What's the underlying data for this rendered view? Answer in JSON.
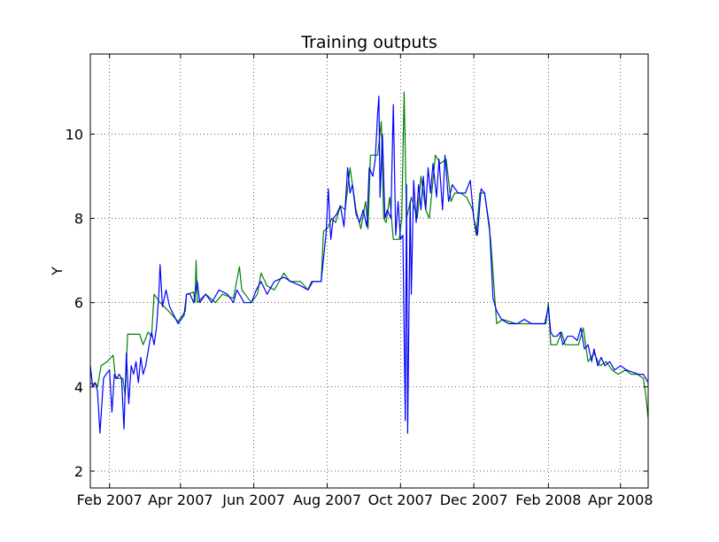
{
  "chart_data": {
    "type": "line",
    "title": "Training outputs",
    "xlabel": "",
    "ylabel": "Y",
    "grid": true,
    "x_axis_type": "date",
    "xlim": [
      "2007-01-16",
      "2008-04-24"
    ],
    "ylim": [
      1.6,
      11.9
    ],
    "x_ticks": [
      "2007-02-01",
      "2007-04-01",
      "2007-06-01",
      "2007-08-01",
      "2007-10-01",
      "2007-12-01",
      "2008-02-01",
      "2008-04-01"
    ],
    "x_tick_labels": [
      "Feb 2007",
      "Apr 2007",
      "Jun 2007",
      "Aug 2007",
      "Oct 2007",
      "Dec 2007",
      "Feb 2008",
      "Apr 2008"
    ],
    "y_ticks": [
      2,
      4,
      6,
      8,
      10
    ],
    "y_tick_labels": [
      "2",
      "4",
      "6",
      "8",
      "10"
    ],
    "series": [
      {
        "color": "#008000",
        "points": [
          [
            "2007-01-16",
            4.1
          ],
          [
            "2007-01-18",
            4.05
          ],
          [
            "2007-01-20",
            4.1
          ],
          [
            "2007-01-22",
            4.0
          ],
          [
            "2007-01-25",
            4.5
          ],
          [
            "2007-01-30",
            4.6
          ],
          [
            "2007-02-04",
            4.75
          ],
          [
            "2007-02-06",
            4.2
          ],
          [
            "2007-02-12",
            4.2
          ],
          [
            "2007-02-14",
            3.8
          ],
          [
            "2007-02-16",
            5.25
          ],
          [
            "2007-02-26",
            5.25
          ],
          [
            "2007-03-01",
            5.0
          ],
          [
            "2007-03-05",
            5.3
          ],
          [
            "2007-03-08",
            5.2
          ],
          [
            "2007-03-10",
            6.2
          ],
          [
            "2007-03-15",
            6.0
          ],
          [
            "2007-03-22",
            5.8
          ],
          [
            "2007-03-30",
            5.55
          ],
          [
            "2007-04-05",
            5.8
          ],
          [
            "2007-04-06",
            6.2
          ],
          [
            "2007-04-12",
            6.25
          ],
          [
            "2007-04-13",
            6.0
          ],
          [
            "2007-04-14",
            7.0
          ],
          [
            "2007-04-15",
            6.0
          ],
          [
            "2007-04-22",
            6.2
          ],
          [
            "2007-04-30",
            6.0
          ],
          [
            "2007-05-06",
            6.2
          ],
          [
            "2007-05-15",
            6.1
          ],
          [
            "2007-05-20",
            6.85
          ],
          [
            "2007-05-22",
            6.3
          ],
          [
            "2007-05-30",
            6.0
          ],
          [
            "2007-06-04",
            6.2
          ],
          [
            "2007-06-07",
            6.7
          ],
          [
            "2007-06-12",
            6.4
          ],
          [
            "2007-06-18",
            6.3
          ],
          [
            "2007-06-22",
            6.5
          ],
          [
            "2007-06-26",
            6.7
          ],
          [
            "2007-07-01",
            6.5
          ],
          [
            "2007-07-10",
            6.5
          ],
          [
            "2007-07-16",
            6.3
          ],
          [
            "2007-07-19",
            6.5
          ],
          [
            "2007-07-22",
            6.5
          ],
          [
            "2007-07-27",
            6.5
          ],
          [
            "2007-07-29",
            7.7
          ],
          [
            "2007-08-01",
            7.75
          ],
          [
            "2007-08-05",
            8.0
          ],
          [
            "2007-08-08",
            7.9
          ],
          [
            "2007-08-12",
            8.3
          ],
          [
            "2007-08-16",
            8.2
          ],
          [
            "2007-08-20",
            9.2
          ],
          [
            "2007-08-25",
            8.2
          ],
          [
            "2007-08-29",
            7.75
          ],
          [
            "2007-09-02",
            8.4
          ],
          [
            "2007-09-04",
            7.75
          ],
          [
            "2007-09-06",
            9.5
          ],
          [
            "2007-09-12",
            9.5
          ],
          [
            "2007-09-15",
            10.3
          ],
          [
            "2007-09-17",
            8.0
          ],
          [
            "2007-09-19",
            7.9
          ],
          [
            "2007-09-22",
            8.5
          ],
          [
            "2007-09-25",
            7.5
          ],
          [
            "2007-09-30",
            7.5
          ],
          [
            "2007-10-02",
            8.0
          ],
          [
            "2007-10-04",
            11.0
          ],
          [
            "2007-10-06",
            8.0
          ],
          [
            "2007-10-10",
            8.5
          ],
          [
            "2007-10-15",
            8.0
          ],
          [
            "2007-10-18",
            9.0
          ],
          [
            "2007-10-22",
            8.2
          ],
          [
            "2007-10-25",
            8.0
          ],
          [
            "2007-10-30",
            9.5
          ],
          [
            "2007-11-03",
            9.3
          ],
          [
            "2007-11-08",
            9.4
          ],
          [
            "2007-11-12",
            8.4
          ],
          [
            "2007-11-15",
            8.6
          ],
          [
            "2007-11-20",
            8.6
          ],
          [
            "2007-11-25",
            8.5
          ],
          [
            "2007-11-30",
            8.2
          ],
          [
            "2007-12-03",
            7.6
          ],
          [
            "2007-12-06",
            8.6
          ],
          [
            "2007-12-10",
            8.6
          ],
          [
            "2007-12-15",
            7.5
          ],
          [
            "2007-12-20",
            5.5
          ],
          [
            "2007-12-25",
            5.6
          ],
          [
            "2008-01-05",
            5.5
          ],
          [
            "2008-01-15",
            5.5
          ],
          [
            "2008-01-25",
            5.5
          ],
          [
            "2008-01-30",
            5.5
          ],
          [
            "2008-02-01",
            6.0
          ],
          [
            "2008-02-03",
            5.0
          ],
          [
            "2008-02-08",
            5.0
          ],
          [
            "2008-02-12",
            5.3
          ],
          [
            "2008-02-15",
            5.0
          ],
          [
            "2008-02-20",
            5.0
          ],
          [
            "2008-02-26",
            5.0
          ],
          [
            "2008-03-01",
            5.4
          ],
          [
            "2008-03-05",
            4.6
          ],
          [
            "2008-03-10",
            4.8
          ],
          [
            "2008-03-15",
            4.5
          ],
          [
            "2008-03-20",
            4.6
          ],
          [
            "2008-03-25",
            4.4
          ],
          [
            "2008-03-30",
            4.3
          ],
          [
            "2008-04-05",
            4.4
          ],
          [
            "2008-04-10",
            4.3
          ],
          [
            "2008-04-15",
            4.3
          ],
          [
            "2008-04-20",
            4.2
          ],
          [
            "2008-04-22",
            3.8
          ],
          [
            "2008-04-24",
            3.25
          ]
        ]
      },
      {
        "color": "#0000ff",
        "points": [
          [
            "2007-01-16",
            4.5
          ],
          [
            "2007-01-18",
            4.0
          ],
          [
            "2007-01-20",
            4.1
          ],
          [
            "2007-01-22",
            3.9
          ],
          [
            "2007-01-24",
            2.9
          ],
          [
            "2007-01-27",
            4.2
          ],
          [
            "2007-01-29",
            4.3
          ],
          [
            "2007-02-01",
            4.4
          ],
          [
            "2007-02-03",
            3.4
          ],
          [
            "2007-02-05",
            4.3
          ],
          [
            "2007-02-07",
            4.2
          ],
          [
            "2007-02-09",
            4.3
          ],
          [
            "2007-02-11",
            4.2
          ],
          [
            "2007-02-13",
            3.0
          ],
          [
            "2007-02-15",
            4.8
          ],
          [
            "2007-02-17",
            3.6
          ],
          [
            "2007-02-19",
            4.5
          ],
          [
            "2007-02-21",
            4.3
          ],
          [
            "2007-02-23",
            4.6
          ],
          [
            "2007-02-25",
            4.1
          ],
          [
            "2007-02-27",
            4.7
          ],
          [
            "2007-03-01",
            4.3
          ],
          [
            "2007-03-03",
            4.5
          ],
          [
            "2007-03-06",
            5.0
          ],
          [
            "2007-03-08",
            5.3
          ],
          [
            "2007-03-10",
            5.0
          ],
          [
            "2007-03-12",
            5.4
          ],
          [
            "2007-03-14",
            6.2
          ],
          [
            "2007-03-15",
            6.9
          ],
          [
            "2007-03-17",
            5.9
          ],
          [
            "2007-03-20",
            6.3
          ],
          [
            "2007-03-23",
            5.9
          ],
          [
            "2007-03-30",
            5.5
          ],
          [
            "2007-04-04",
            5.7
          ],
          [
            "2007-04-06",
            6.2
          ],
          [
            "2007-04-09",
            6.2
          ],
          [
            "2007-04-12",
            6.0
          ],
          [
            "2007-04-15",
            6.5
          ],
          [
            "2007-04-17",
            6.0
          ],
          [
            "2007-04-22",
            6.2
          ],
          [
            "2007-04-27",
            6.0
          ],
          [
            "2007-05-03",
            6.3
          ],
          [
            "2007-05-10",
            6.2
          ],
          [
            "2007-05-15",
            6.0
          ],
          [
            "2007-05-18",
            6.3
          ],
          [
            "2007-05-24",
            6.0
          ],
          [
            "2007-05-30",
            6.0
          ],
          [
            "2007-06-03",
            6.3
          ],
          [
            "2007-06-07",
            6.5
          ],
          [
            "2007-06-12",
            6.2
          ],
          [
            "2007-06-18",
            6.5
          ],
          [
            "2007-06-26",
            6.6
          ],
          [
            "2007-07-02",
            6.5
          ],
          [
            "2007-07-10",
            6.4
          ],
          [
            "2007-07-16",
            6.3
          ],
          [
            "2007-07-20",
            6.5
          ],
          [
            "2007-07-27",
            6.5
          ],
          [
            "2007-07-31",
            7.6
          ],
          [
            "2007-08-02",
            8.7
          ],
          [
            "2007-08-04",
            7.5
          ],
          [
            "2007-08-06",
            8.0
          ],
          [
            "2007-08-09",
            8.1
          ],
          [
            "2007-08-12",
            8.3
          ],
          [
            "2007-08-15",
            7.8
          ],
          [
            "2007-08-18",
            9.2
          ],
          [
            "2007-08-20",
            8.6
          ],
          [
            "2007-08-22",
            8.8
          ],
          [
            "2007-08-25",
            8.1
          ],
          [
            "2007-08-28",
            7.9
          ],
          [
            "2007-08-31",
            8.2
          ],
          [
            "2007-09-03",
            7.8
          ],
          [
            "2007-09-05",
            9.2
          ],
          [
            "2007-09-08",
            9.0
          ],
          [
            "2007-09-10",
            9.4
          ],
          [
            "2007-09-12",
            10.5
          ],
          [
            "2007-09-13",
            10.9
          ],
          [
            "2007-09-14",
            8.5
          ],
          [
            "2007-09-16",
            10.0
          ],
          [
            "2007-09-18",
            8.0
          ],
          [
            "2007-09-20",
            8.2
          ],
          [
            "2007-09-23",
            8.0
          ],
          [
            "2007-09-25",
            10.7
          ],
          [
            "2007-09-27",
            7.6
          ],
          [
            "2007-09-29",
            8.4
          ],
          [
            "2007-10-01",
            7.5
          ],
          [
            "2007-10-03",
            7.6
          ],
          [
            "2007-10-05",
            3.2
          ],
          [
            "2007-10-06",
            8.8
          ],
          [
            "2007-10-07",
            2.9
          ],
          [
            "2007-10-09",
            8.4
          ],
          [
            "2007-10-10",
            6.2
          ],
          [
            "2007-10-12",
            8.9
          ],
          [
            "2007-10-14",
            7.9
          ],
          [
            "2007-10-16",
            8.8
          ],
          [
            "2007-10-18",
            8.2
          ],
          [
            "2007-10-20",
            9.0
          ],
          [
            "2007-10-22",
            8.2
          ],
          [
            "2007-10-24",
            9.2
          ],
          [
            "2007-10-26",
            8.6
          ],
          [
            "2007-10-28",
            9.3
          ],
          [
            "2007-10-31",
            8.5
          ],
          [
            "2007-11-02",
            9.4
          ],
          [
            "2007-11-05",
            8.2
          ],
          [
            "2007-11-07",
            9.5
          ],
          [
            "2007-11-10",
            8.4
          ],
          [
            "2007-11-13",
            8.8
          ],
          [
            "2007-11-18",
            8.6
          ],
          [
            "2007-11-24",
            8.6
          ],
          [
            "2007-11-28",
            8.9
          ],
          [
            "2007-12-01",
            8.0
          ],
          [
            "2007-12-04",
            7.6
          ],
          [
            "2007-12-07",
            8.7
          ],
          [
            "2007-12-10",
            8.6
          ],
          [
            "2007-12-14",
            7.8
          ],
          [
            "2007-12-17",
            6.1
          ],
          [
            "2007-12-20",
            5.8
          ],
          [
            "2007-12-24",
            5.6
          ],
          [
            "2007-12-30",
            5.5
          ],
          [
            "2008-01-06",
            5.5
          ],
          [
            "2008-01-12",
            5.6
          ],
          [
            "2008-01-18",
            5.5
          ],
          [
            "2008-01-24",
            5.5
          ],
          [
            "2008-01-29",
            5.5
          ],
          [
            "2008-02-01",
            5.9
          ],
          [
            "2008-02-03",
            5.3
          ],
          [
            "2008-02-05",
            5.2
          ],
          [
            "2008-02-08",
            5.2
          ],
          [
            "2008-02-11",
            5.3
          ],
          [
            "2008-02-13",
            5.0
          ],
          [
            "2008-02-17",
            5.2
          ],
          [
            "2008-02-21",
            5.2
          ],
          [
            "2008-02-25",
            5.1
          ],
          [
            "2008-02-28",
            5.4
          ],
          [
            "2008-03-02",
            4.9
          ],
          [
            "2008-03-05",
            5.0
          ],
          [
            "2008-03-08",
            4.6
          ],
          [
            "2008-03-10",
            4.9
          ],
          [
            "2008-03-13",
            4.5
          ],
          [
            "2008-03-16",
            4.7
          ],
          [
            "2008-03-19",
            4.5
          ],
          [
            "2008-03-23",
            4.6
          ],
          [
            "2008-03-27",
            4.4
          ],
          [
            "2008-04-01",
            4.5
          ],
          [
            "2008-04-06",
            4.4
          ],
          [
            "2008-04-11",
            4.35
          ],
          [
            "2008-04-16",
            4.3
          ],
          [
            "2008-04-20",
            4.3
          ],
          [
            "2008-04-22",
            4.2
          ],
          [
            "2008-04-24",
            4.1
          ]
        ]
      }
    ]
  }
}
